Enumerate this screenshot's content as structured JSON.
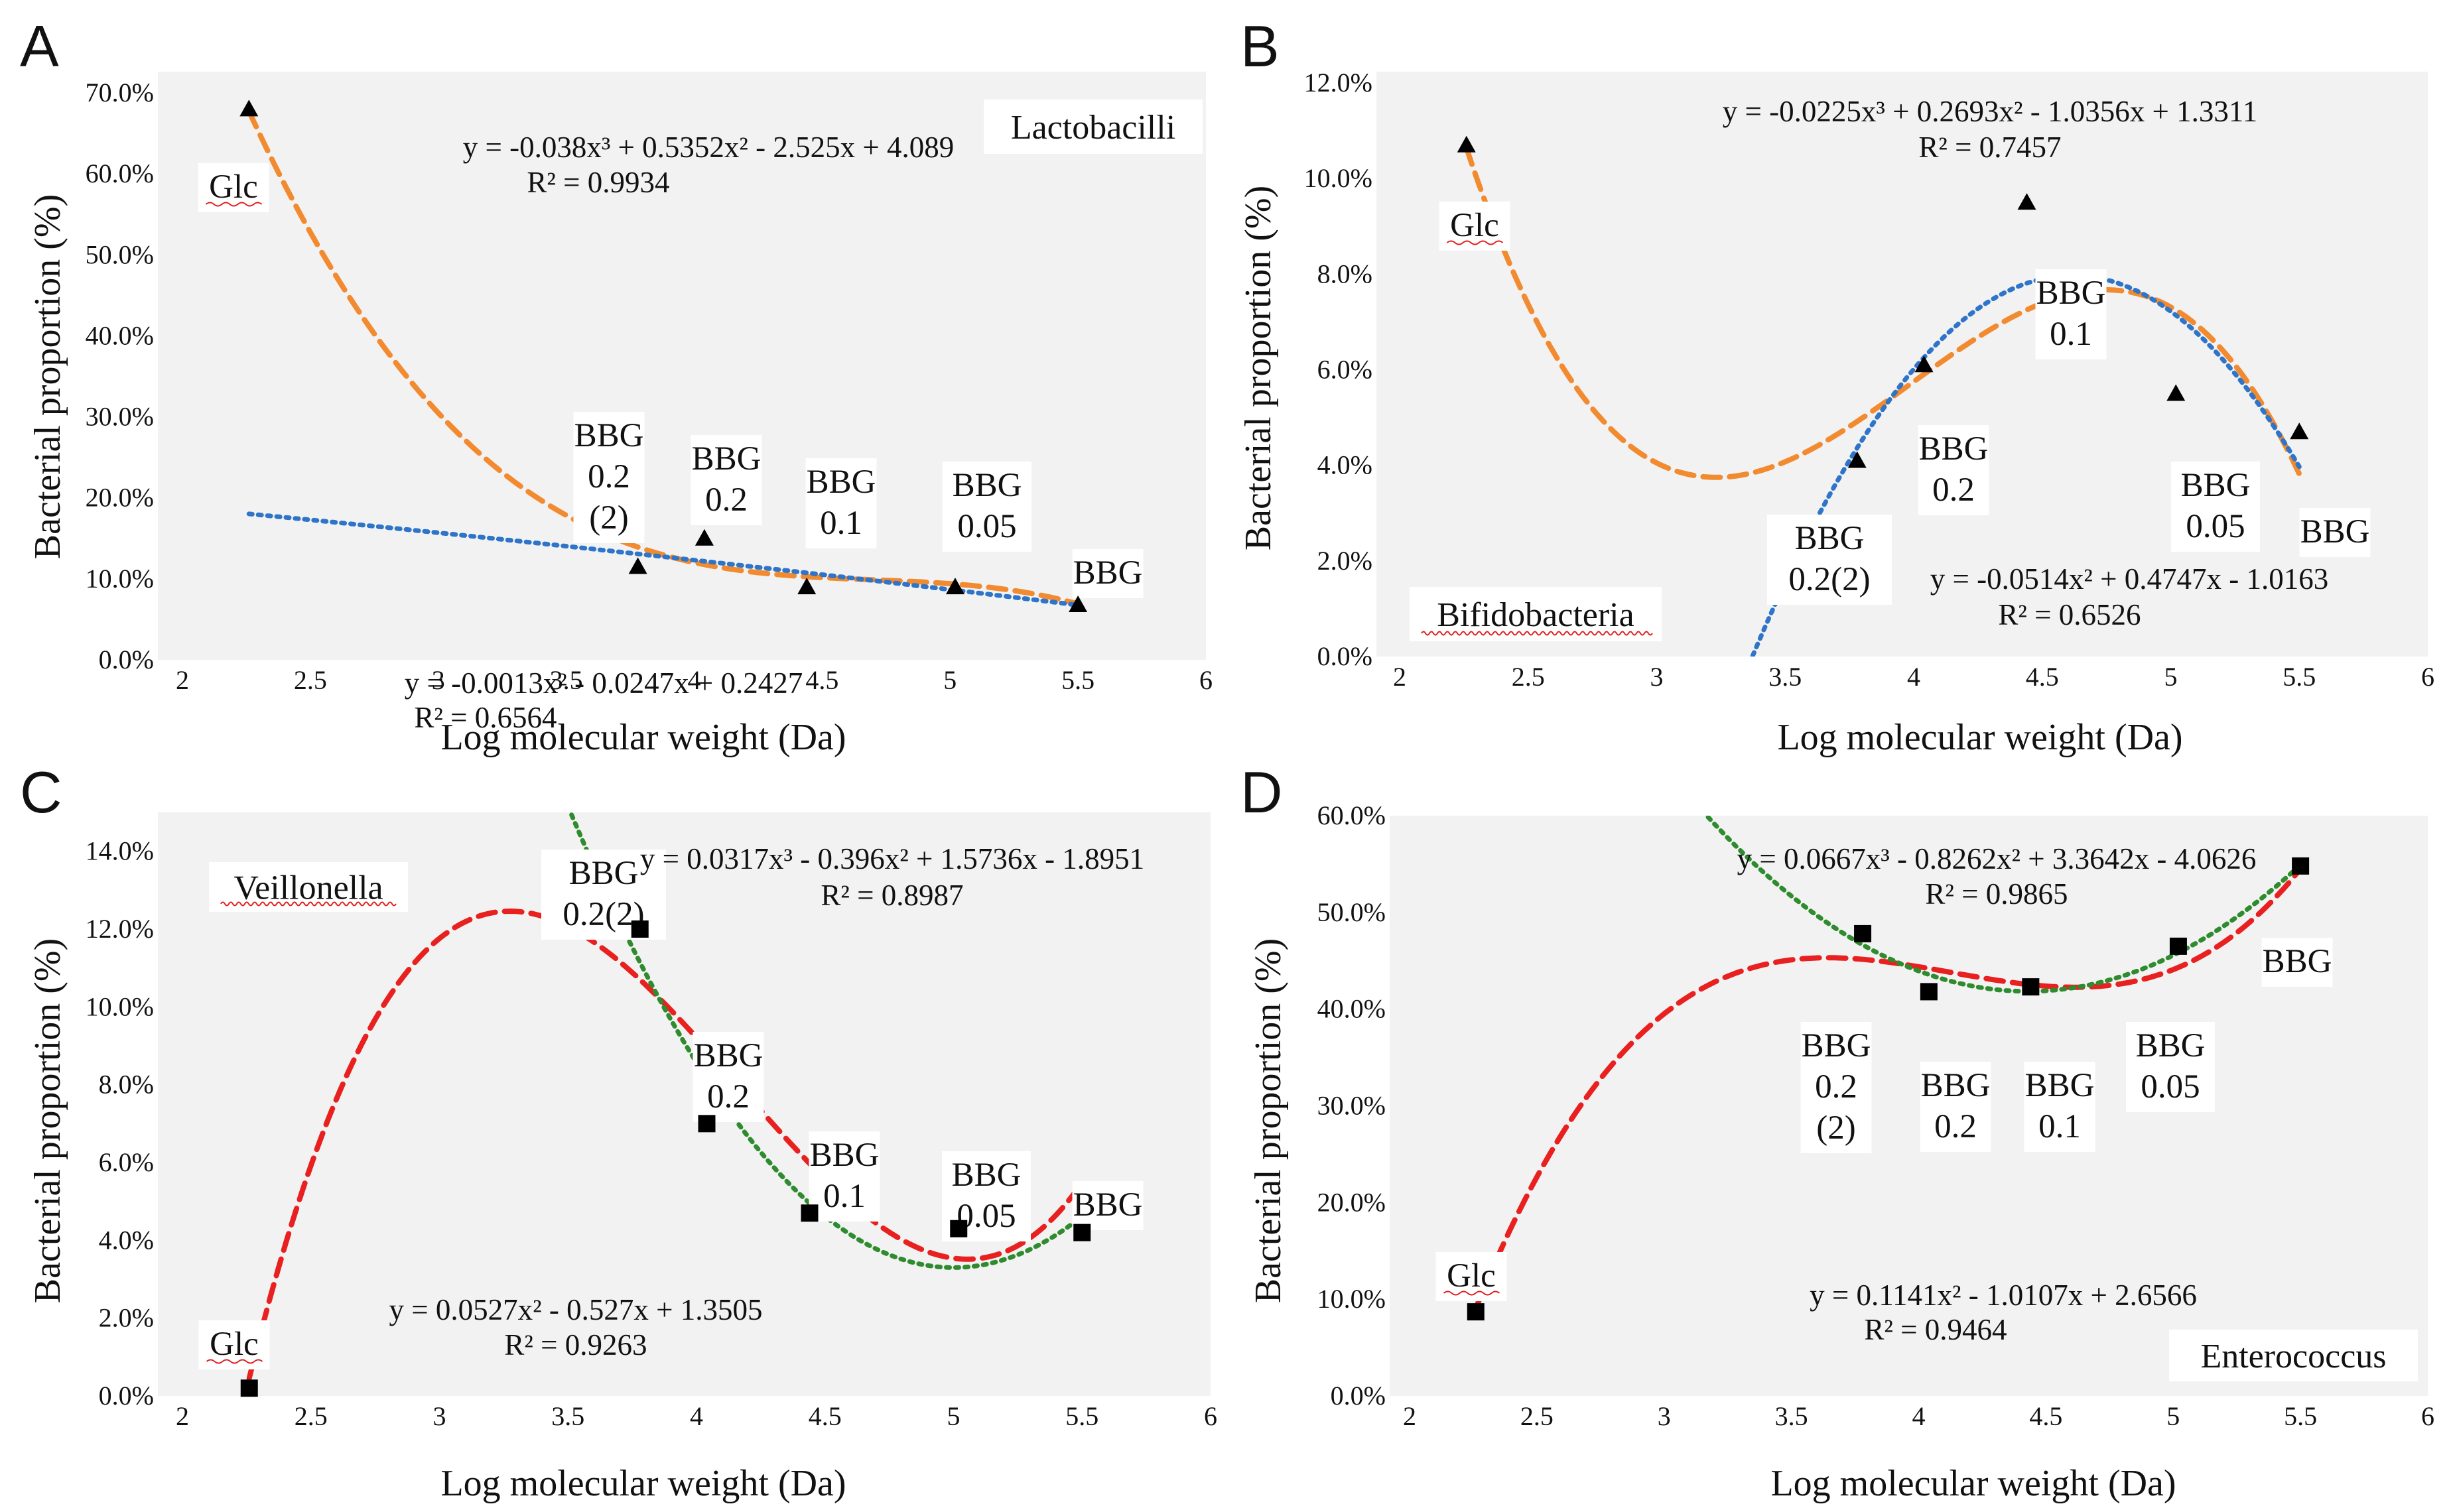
{
  "figure": {
    "panels": [
      {
        "letter": "A",
        "species": "Lactobacilli",
        "x_label": "Log molecular weight (Da)",
        "y_label": "Bacterial proportion (%)"
      },
      {
        "letter": "B",
        "species": "Bifidobacteria",
        "x_label": "Log molecular weight (Da)",
        "y_label": "Bacterial proportion (%)"
      },
      {
        "letter": "C",
        "species": "Veillonella",
        "x_label": "Log molecular weight (Da)",
        "y_label": "Bacterial proportion (%)"
      },
      {
        "letter": "D",
        "species": "Enterococcus",
        "x_label": "Log molecular weight (Da)",
        "y_label": "Bacterial proportion (%)"
      }
    ]
  },
  "chart_data": [
    {
      "type": "scatter",
      "panel": "A",
      "title": "Lactobacilli",
      "xlabel": "Log molecular weight (Da)",
      "ylabel": "Bacterial proportion (%)",
      "xlim": [
        2,
        6
      ],
      "ylim": [
        0,
        0.7
      ],
      "x_ticks": [
        2,
        2.5,
        3,
        3.5,
        4,
        4.5,
        5,
        5.5,
        6
      ],
      "x_tick_labels": [
        "2",
        "2.5",
        "3",
        "3.5",
        "4",
        "4.5",
        "5",
        "5.5",
        "6"
      ],
      "y_ticks": [
        0,
        0.1,
        0.2,
        0.3,
        0.4,
        0.5,
        0.6,
        0.7
      ],
      "y_tick_labels": [
        "0.0%",
        "10.0%",
        "20.0%",
        "30.0%",
        "40.0%",
        "50.0%",
        "60.0%",
        "70.0%"
      ],
      "marker": "triangle",
      "marker_color": "#000000",
      "points": [
        {
          "label": "Glc",
          "x": 2.26,
          "y": 0.68
        },
        {
          "label": "BBG 0.2 (2)",
          "x": 3.78,
          "y": 0.115
        },
        {
          "label": "BBG 0.2",
          "x": 4.04,
          "y": 0.15
        },
        {
          "label": "BBG 0.1",
          "x": 4.44,
          "y": 0.09
        },
        {
          "label": "BBG 0.05",
          "x": 5.02,
          "y": 0.09
        },
        {
          "label": "BBG",
          "x": 5.5,
          "y": 0.068
        }
      ],
      "point_labels": [
        {
          "lines": [
            "Glc"
          ]
        },
        {
          "lines": [
            "BBG",
            "0.2",
            "(2)"
          ]
        },
        {
          "lines": [
            "BBG",
            "0.2"
          ]
        },
        {
          "lines": [
            "BBG",
            "0.1"
          ]
        },
        {
          "lines": [
            "BBG",
            "0.05"
          ]
        },
        {
          "lines": [
            "BBG"
          ]
        }
      ],
      "trendlines": [
        {
          "name": "Poly. (3rd order)",
          "style": "dash",
          "color": "#F28A30",
          "coef": [
            4.089,
            -2.525,
            0.5352,
            -0.038
          ],
          "x_range": [
            2.26,
            5.5
          ],
          "equation": "y = -0.038x³ + 0.5352x² - 2.525x + 4.089",
          "r2": "R² = 0.9934"
        },
        {
          "name": "Poly. (2nd order)",
          "style": "dot",
          "color": "#2E75C9",
          "coef": [
            0.2427,
            -0.0247,
            -0.0013
          ],
          "x_range": [
            2.26,
            5.5
          ],
          "equation": "y = -0.0013x² - 0.0247x + 0.2427",
          "r2": "R² = 0.6564"
        }
      ]
    },
    {
      "type": "scatter",
      "panel": "B",
      "title": "Bifidobacteria",
      "xlabel": "Log molecular weight (Da)",
      "ylabel": "Bacterial proportion (%)",
      "xlim": [
        2,
        6
      ],
      "ylim": [
        0,
        0.12
      ],
      "x_ticks": [
        2,
        2.5,
        3,
        3.5,
        4,
        4.5,
        5,
        5.5,
        6
      ],
      "x_tick_labels": [
        "2",
        "2.5",
        "3",
        "3.5",
        "4",
        "4.5",
        "5",
        "5.5",
        "6"
      ],
      "y_ticks": [
        0,
        0.02,
        0.04,
        0.06,
        0.08,
        0.1,
        0.12
      ],
      "y_tick_labels": [
        "0.0%",
        "2.0%",
        "4.0%",
        "6.0%",
        "8.0%",
        "10.0%",
        "12.0%"
      ],
      "marker": "triangle",
      "marker_color": "#000000",
      "points": [
        {
          "label": "Glc",
          "x": 2.26,
          "y": 0.107
        },
        {
          "label": "BBG 0.2(2)",
          "x": 3.78,
          "y": 0.041
        },
        {
          "label": "BBG 0.2",
          "x": 4.04,
          "y": 0.061
        },
        {
          "label": "BBG 0.1",
          "x": 4.44,
          "y": 0.095
        },
        {
          "label": "BBG 0.05",
          "x": 5.02,
          "y": 0.055
        },
        {
          "label": "BBG",
          "x": 5.5,
          "y": 0.047
        }
      ],
      "point_labels": [
        {
          "lines": [
            "Glc"
          ]
        },
        {
          "lines": [
            "BBG",
            "0.2(2)"
          ]
        },
        {
          "lines": [
            "BBG",
            "0.2"
          ]
        },
        {
          "lines": [
            "BBG",
            "0.1"
          ]
        },
        {
          "lines": [
            "BBG",
            "0.05"
          ]
        },
        {
          "lines": [
            "BBG"
          ]
        }
      ],
      "trendlines": [
        {
          "name": "Poly. (3rd order)",
          "style": "dash",
          "color": "#F28A30",
          "coef": [
            1.3311,
            -1.0356,
            0.2693,
            -0.0225
          ],
          "x_range": [
            2.26,
            5.5
          ],
          "equation": "y = -0.0225x³ + 0.2693x² - 1.0356x + 1.3311",
          "r2": "R² = 0.7457"
        },
        {
          "name": "Poly. (2nd order)",
          "style": "dot",
          "color": "#2E75C9",
          "coef": [
            -1.0163,
            0.4747,
            -0.0514
          ],
          "x_range": [
            3.36,
            5.5
          ],
          "equation": "y = -0.0514x² + 0.4747x - 1.0163",
          "r2": "R² = 0.6526"
        }
      ]
    },
    {
      "type": "scatter",
      "panel": "C",
      "title": "Veillonella",
      "xlabel": "Log molecular weight (Da)",
      "ylabel": "Bacterial proportion (%)",
      "xlim": [
        2,
        6
      ],
      "ylim": [
        0,
        0.15
      ],
      "x_ticks": [
        2,
        2.5,
        3,
        3.5,
        4,
        4.5,
        5,
        5.5,
        6
      ],
      "x_tick_labels": [
        "2",
        "2.5",
        "3",
        "3.5",
        "4",
        "4.5",
        "5",
        "5.5",
        "6"
      ],
      "y_ticks": [
        0,
        0.02,
        0.04,
        0.06,
        0.08,
        0.1,
        0.12,
        0.14
      ],
      "y_tick_labels": [
        "0.0%",
        "2.0%",
        "4.0%",
        "6.0%",
        "8.0%",
        "10.0%",
        "12.0%",
        "14.0%"
      ],
      "marker": "square",
      "marker_color": "#000000",
      "points": [
        {
          "label": "Glc",
          "x": 2.26,
          "y": 0.002
        },
        {
          "label": "BBG 0.2(2)",
          "x": 3.78,
          "y": 0.12
        },
        {
          "label": "BBG 0.2",
          "x": 4.04,
          "y": 0.07
        },
        {
          "label": "BBG 0.1",
          "x": 4.44,
          "y": 0.047
        },
        {
          "label": "BBG 0.05",
          "x": 5.02,
          "y": 0.043
        },
        {
          "label": "BBG",
          "x": 5.5,
          "y": 0.042
        }
      ],
      "point_labels": [
        {
          "lines": [
            "Glc"
          ]
        },
        {
          "lines": [
            "BBG",
            "0.2(2)"
          ]
        },
        {
          "lines": [
            "BBG",
            "0.2"
          ]
        },
        {
          "lines": [
            "BBG",
            "0.1"
          ]
        },
        {
          "lines": [
            "BBG",
            "0.05"
          ]
        },
        {
          "lines": [
            "BBG"
          ]
        }
      ],
      "trendlines": [
        {
          "name": "Poly. (3rd order)",
          "style": "dash",
          "color": "#E8201F",
          "coef": [
            -1.8951,
            1.5736,
            -0.396,
            0.0317
          ],
          "x_range": [
            2.26,
            5.5
          ],
          "equation": "y = 0.0317x³ - 0.396x² + 1.5736x - 1.8951",
          "r2": "R² = 0.8987"
        },
        {
          "name": "Poly. (2nd order)",
          "style": "dot",
          "color": "#2E8B2E",
          "coef": [
            1.3505,
            -0.527,
            0.0527
          ],
          "x_range": [
            3.5,
            5.5
          ],
          "equation": "y = 0.0527x² - 0.527x + 1.3505",
          "r2": "R² = 0.9263"
        }
      ]
    },
    {
      "type": "scatter",
      "panel": "D",
      "title": "Enterococcus",
      "xlabel": "Log molecular weight (Da)",
      "ylabel": "Bacterial proportion (%)",
      "xlim": [
        2,
        6
      ],
      "ylim": [
        0,
        0.6
      ],
      "x_ticks": [
        2,
        2.5,
        3,
        3.5,
        4,
        4.5,
        5,
        5.5,
        6
      ],
      "x_tick_labels": [
        "2",
        "2.5",
        "3",
        "3.5",
        "4",
        "4.5",
        "5",
        "5.5",
        "6"
      ],
      "y_ticks": [
        0,
        0.1,
        0.2,
        0.3,
        0.4,
        0.5,
        0.6
      ],
      "y_tick_labels": [
        "0.0%",
        "10.0%",
        "20.0%",
        "30.0%",
        "40.0%",
        "50.0%",
        "60.0%"
      ],
      "marker": "square",
      "marker_color": "#000000",
      "points": [
        {
          "label": "Glc",
          "x": 2.26,
          "y": 0.087
        },
        {
          "label": "BBG 0.2 (2)",
          "x": 3.78,
          "y": 0.478
        },
        {
          "label": "BBG 0.2",
          "x": 4.04,
          "y": 0.418
        },
        {
          "label": "BBG 0.1",
          "x": 4.44,
          "y": 0.423
        },
        {
          "label": "BBG 0.05",
          "x": 5.02,
          "y": 0.465
        },
        {
          "label": "BBG",
          "x": 5.5,
          "y": 0.548
        }
      ],
      "point_labels": [
        {
          "lines": [
            "Glc"
          ]
        },
        {
          "lines": [
            "BBG",
            "0.2",
            "(2)"
          ]
        },
        {
          "lines": [
            "BBG",
            "0.2"
          ]
        },
        {
          "lines": [
            "BBG",
            "0.1"
          ]
        },
        {
          "lines": [
            "BBG",
            "0.05"
          ]
        },
        {
          "lines": [
            "BBG"
          ]
        }
      ],
      "trendlines": [
        {
          "name": "Poly. (3rd order)",
          "style": "dash",
          "color": "#E8201F",
          "coef": [
            -4.0626,
            3.3642,
            -0.8262,
            0.0667
          ],
          "x_range": [
            2.26,
            5.5
          ],
          "equation": "y = 0.0667x³ - 0.8262x² + 3.3642x - 4.0626",
          "r2": "R² = 0.9865"
        },
        {
          "name": "Poly. (2nd order)",
          "style": "dot",
          "color": "#2E8B2E",
          "coef": [
            2.6566,
            -1.0107,
            0.1141
          ],
          "x_range": [
            3.1,
            5.5
          ],
          "equation": "y = 0.1141x² - 1.0107x + 2.6566",
          "r2": "R² = 0.9464"
        }
      ]
    }
  ]
}
